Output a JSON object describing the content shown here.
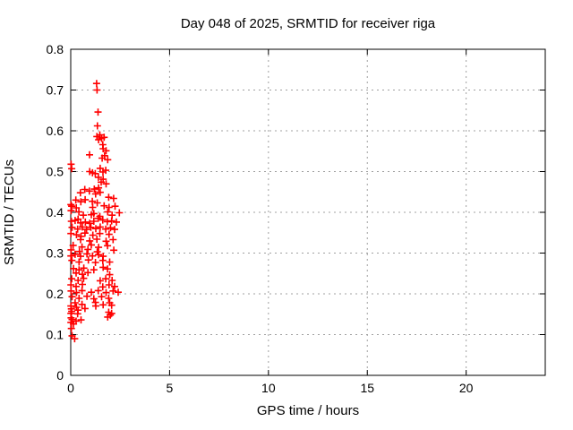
{
  "page": {
    "background": "#ffffff"
  },
  "chart_data": {
    "type": "scatter",
    "title": "Day 048 of 2025, SRMTID for receiver riga",
    "xlabel": "GPS time / hours",
    "ylabel": "SRMTID / TECUs",
    "xlim": [
      0,
      24
    ],
    "ylim": [
      0,
      0.8
    ],
    "xticks": [
      0,
      5,
      10,
      15,
      20
    ],
    "xtick_labels": [
      "0",
      "5",
      "10",
      "15",
      "20"
    ],
    "yticks": [
      0,
      0.1,
      0.2,
      0.3,
      0.4,
      0.5,
      0.6,
      0.7,
      0.8
    ],
    "ytick_labels": [
      "0",
      "0.1",
      "0.2",
      "0.3",
      "0.4",
      "0.5",
      "0.6",
      "0.7",
      "0.8"
    ],
    "grid": true,
    "legend_position": "none",
    "marker": {
      "shape": "plus",
      "color": "#ff0000",
      "size": 4
    },
    "series": [
      {
        "name": "SRMTID",
        "points": [
          [
            1.31,
            0.716
          ],
          [
            1.33,
            0.7
          ],
          [
            1.38,
            0.646
          ],
          [
            1.35,
            0.612
          ],
          [
            1.32,
            0.586
          ],
          [
            1.47,
            0.59
          ],
          [
            1.41,
            0.578
          ],
          [
            1.56,
            0.581
          ],
          [
            1.69,
            0.584
          ],
          [
            1.62,
            0.566
          ],
          [
            0.95,
            0.541
          ],
          [
            1.64,
            0.556
          ],
          [
            1.79,
            0.551
          ],
          [
            1.71,
            0.539
          ],
          [
            1.87,
            0.529
          ],
          [
            1.59,
            0.533
          ],
          [
            0.02,
            0.518
          ],
          [
            0.05,
            0.507
          ],
          [
            0.96,
            0.5
          ],
          [
            1.49,
            0.508
          ],
          [
            1.63,
            0.499
          ],
          [
            1.77,
            0.503
          ],
          [
            1.24,
            0.495
          ],
          [
            1.1,
            0.497
          ],
          [
            1.4,
            0.486
          ],
          [
            1.64,
            0.481
          ],
          [
            1.54,
            0.474
          ],
          [
            1.79,
            0.47
          ],
          [
            0.71,
            0.456
          ],
          [
            0.94,
            0.452
          ],
          [
            1.19,
            0.457
          ],
          [
            1.41,
            0.46
          ],
          [
            0.49,
            0.448
          ],
          [
            1.26,
            0.445
          ],
          [
            1.49,
            0.449
          ],
          [
            1.92,
            0.437
          ],
          [
            2.17,
            0.434
          ],
          [
            0.26,
            0.43
          ],
          [
            0.51,
            0.426
          ],
          [
            0.73,
            0.431
          ],
          [
            1.09,
            0.427
          ],
          [
            1.34,
            0.423
          ],
          [
            0.01,
            0.419
          ],
          [
            0.05,
            0.415
          ],
          [
            0.28,
            0.411
          ],
          [
            1.11,
            0.412
          ],
          [
            1.69,
            0.416
          ],
          [
            1.94,
            0.412
          ],
          [
            2.24,
            0.415
          ],
          [
            0.02,
            0.404
          ],
          [
            0.41,
            0.401
          ],
          [
            1.17,
            0.397
          ],
          [
            1.87,
            0.401
          ],
          [
            0.64,
            0.393
          ],
          [
            1.04,
            0.394
          ],
          [
            1.47,
            0.39
          ],
          [
            2.09,
            0.393
          ],
          [
            2.46,
            0.399
          ],
          [
            0.03,
            0.378
          ],
          [
            0.22,
            0.38
          ],
          [
            0.5,
            0.374
          ],
          [
            0.74,
            0.376
          ],
          [
            0.96,
            0.373
          ],
          [
            1.17,
            0.378
          ],
          [
            1.62,
            0.381
          ],
          [
            1.85,
            0.377
          ],
          [
            2.07,
            0.379
          ],
          [
            0.37,
            0.383
          ],
          [
            1.39,
            0.385
          ],
          [
            2.31,
            0.376
          ],
          [
            0.07,
            0.363
          ],
          [
            0.35,
            0.359
          ],
          [
            0.59,
            0.364
          ],
          [
            0.8,
            0.358
          ],
          [
            1.02,
            0.363
          ],
          [
            1.27,
            0.36
          ],
          [
            1.49,
            0.364
          ],
          [
            1.77,
            0.359
          ],
          [
            2.01,
            0.362
          ],
          [
            2.22,
            0.358
          ],
          [
            0.01,
            0.348
          ],
          [
            0.29,
            0.345
          ],
          [
            0.72,
            0.349
          ],
          [
            1.12,
            0.344
          ],
          [
            1.47,
            0.348
          ],
          [
            1.94,
            0.346
          ],
          [
            0.52,
            0.341
          ],
          [
            0.5,
            0.333
          ],
          [
            0.96,
            0.33
          ],
          [
            1.32,
            0.334
          ],
          [
            1.79,
            0.329
          ],
          [
            2.14,
            0.333
          ],
          [
            0.12,
            0.319
          ],
          [
            0.57,
            0.315
          ],
          [
            1.04,
            0.32
          ],
          [
            1.41,
            0.314
          ],
          [
            1.86,
            0.318
          ],
          [
            0.02,
            0.308
          ],
          [
            0.44,
            0.304
          ],
          [
            0.87,
            0.309
          ],
          [
            1.34,
            0.303
          ],
          [
            2.18,
            0.307
          ],
          [
            0.01,
            0.293
          ],
          [
            0.22,
            0.297
          ],
          [
            0.5,
            0.292
          ],
          [
            0.82,
            0.298
          ],
          [
            1.1,
            0.293
          ],
          [
            1.41,
            0.296
          ],
          [
            1.64,
            0.292
          ],
          [
            0.06,
            0.282
          ],
          [
            0.42,
            0.278
          ],
          [
            0.89,
            0.283
          ],
          [
            1.25,
            0.277
          ],
          [
            1.62,
            0.282
          ],
          [
            1.97,
            0.278
          ],
          [
            0.14,
            0.262
          ],
          [
            0.42,
            0.259
          ],
          [
            0.66,
            0.263
          ],
          [
            1.17,
            0.259
          ],
          [
            1.64,
            0.265
          ],
          [
            1.86,
            0.261
          ],
          [
            0.27,
            0.251
          ],
          [
            0.59,
            0.248
          ],
          [
            0.87,
            0.252
          ],
          [
            1.97,
            0.247
          ],
          [
            0.05,
            0.237
          ],
          [
            0.37,
            0.233
          ],
          [
            0.65,
            0.238
          ],
          [
            1.49,
            0.232
          ],
          [
            1.77,
            0.237
          ],
          [
            2.09,
            0.233
          ],
          [
            0.01,
            0.222
          ],
          [
            0.27,
            0.218
          ],
          [
            0.59,
            0.223
          ],
          [
            1.62,
            0.217
          ],
          [
            1.94,
            0.222
          ],
          [
            2.22,
            0.218
          ],
          [
            0.02,
            0.207
          ],
          [
            0.29,
            0.203
          ],
          [
            0.57,
            0.208
          ],
          [
            1.04,
            0.204
          ],
          [
            1.39,
            0.208
          ],
          [
            1.79,
            0.203
          ],
          [
            2.14,
            0.207
          ],
          [
            2.4,
            0.204
          ],
          [
            0.07,
            0.193
          ],
          [
            0.42,
            0.189
          ],
          [
            0.82,
            0.194
          ],
          [
            1.17,
            0.188
          ],
          [
            1.56,
            0.193
          ],
          [
            1.92,
            0.189
          ],
          [
            0.22,
            0.178
          ],
          [
            0.57,
            0.174
          ],
          [
            1.25,
            0.179
          ],
          [
            1.64,
            0.173
          ],
          [
            1.97,
            0.178
          ],
          [
            1.27,
            0.17
          ],
          [
            0.01,
            0.17
          ],
          [
            0.29,
            0.167
          ],
          [
            2.07,
            0.172
          ],
          [
            0.03,
            0.163
          ],
          [
            0.37,
            0.16
          ],
          [
            0.72,
            0.164
          ],
          [
            0.05,
            0.157
          ],
          [
            0.01,
            0.152
          ],
          [
            0.35,
            0.151
          ],
          [
            1.92,
            0.155
          ],
          [
            2.0,
            0.148
          ],
          [
            2.07,
            0.152
          ],
          [
            1.87,
            0.143
          ],
          [
            0.02,
            0.141
          ],
          [
            0.07,
            0.137
          ],
          [
            0.27,
            0.133
          ],
          [
            0.52,
            0.136
          ],
          [
            0.01,
            0.13
          ],
          [
            0.14,
            0.126
          ],
          [
            0.03,
            0.115
          ],
          [
            0.07,
            0.097
          ],
          [
            0.2,
            0.09
          ]
        ]
      }
    ]
  }
}
